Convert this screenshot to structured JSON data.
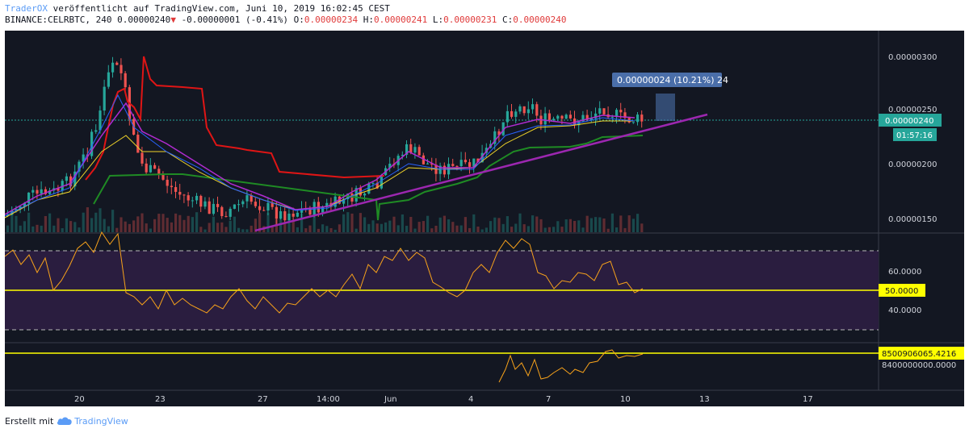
{
  "header": {
    "author": "TraderOX",
    "published": "veröffentlicht auf TradingView.com, Juni 10, 2019 16:02:45 CEST",
    "symbol": "BINANCE:CELRBTC, 240",
    "last": "0.00000240",
    "arrow": "▼",
    "change": "-0.00000001 (-0.41%)",
    "o_label": "O:",
    "o_value": "0.00000234",
    "h_label": "H:",
    "h_value": "0.00000241",
    "l_label": "L:",
    "l_value": "0.00000231",
    "c_label": "C:",
    "c_value": "0.00000240"
  },
  "price_axis": {
    "ticks": [
      "0.00000300",
      "0.00000250",
      "0.00000200",
      "0.00000150"
    ],
    "current_price": "0.00000240",
    "countdown": "01:57:16"
  },
  "measure_tooltip": "0.00000024 (10.21%) 24",
  "rsi_axis": {
    "ticks": [
      "60.0000",
      "40.0000"
    ],
    "current_value": "50.0000"
  },
  "third_axis": {
    "current_value": "8500906065.4216",
    "tick": "8400000000.0000"
  },
  "time_axis": [
    "20",
    "23",
    "27",
    "14:00",
    "Jun",
    "4",
    "7",
    "10",
    "13",
    "17"
  ],
  "footer": {
    "created_with": "Erstellt mit",
    "brand": "TradingView"
  },
  "colors": {
    "background": "#131722",
    "bullish": "#26a69a",
    "bearish": "#ef5350",
    "trendline": "#9c27b0",
    "supertrend_red": "#e01515",
    "supertrend_green": "#1f8b24",
    "rsi_line": "#f7a21b",
    "rsi_band": "#2a1d3f",
    "level_yellow": "#ffff00",
    "price_tag": "#26a69a",
    "tooltip": "#4a6ea9"
  },
  "icons": [
    "tradingview-cloud-icon"
  ]
}
